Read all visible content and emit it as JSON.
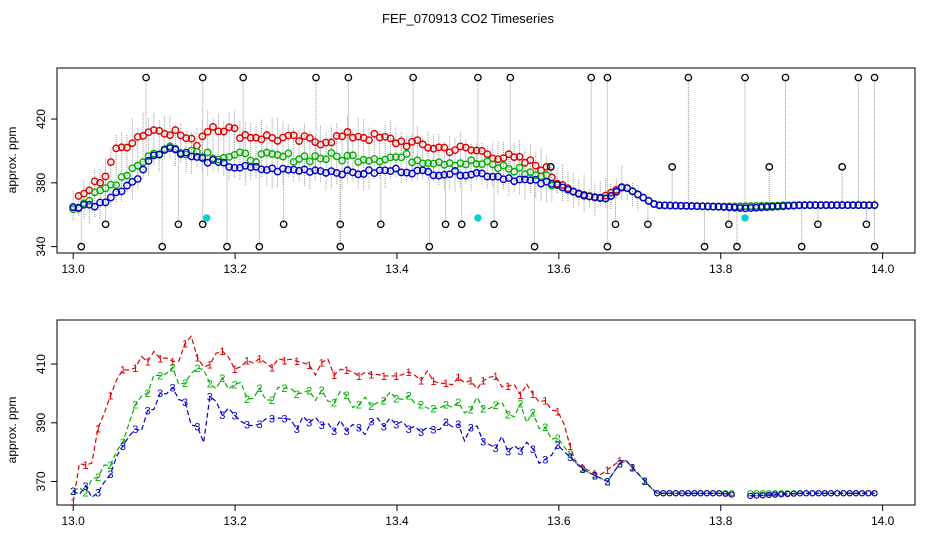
{
  "title": "FEF_070913  CO2 Timeseries",
  "colors": {
    "series1": "#e00000",
    "series2": "#00b000",
    "series3": "#0000d0",
    "outlier": "#000000",
    "flag": "#00d0d0",
    "drop": "#9a9a9a"
  },
  "chart_data": [
    {
      "id": "top",
      "type": "scatter",
      "ylabel": "approx. ppm",
      "xlim": [
        12.98,
        14.04
      ],
      "ylim": [
        336,
        452
      ],
      "xticks": [
        13.0,
        13.2,
        13.4,
        13.6,
        13.8,
        14.0
      ],
      "xtick_labels": [
        "13.0",
        "13.2",
        "13.4",
        "13.6",
        "13.8",
        "14.0"
      ],
      "yticks": [
        340,
        380,
        420
      ],
      "ytick_labels": [
        "340",
        "380",
        "420"
      ],
      "series": [
        {
          "name": "1",
          "color": "red",
          "x": [
            13.0,
            13.02,
            13.04,
            13.05,
            13.07,
            13.09,
            13.11,
            13.13,
            13.15,
            13.17,
            13.19,
            13.21,
            13.25,
            13.3,
            13.35,
            13.4,
            13.45,
            13.5,
            13.55,
            13.58,
            13.6,
            13.62,
            13.65,
            13.68,
            13.72,
            13.8,
            13.9,
            13.99
          ],
          "y": [
            366,
            376,
            385,
            398,
            406,
            412,
            414,
            411,
            404,
            416,
            414,
            410,
            408,
            406,
            410,
            406,
            402,
            400,
            394,
            390,
            380,
            374,
            370,
            378,
            366,
            365,
            366,
            366
          ]
        },
        {
          "name": "2",
          "color": "green",
          "x": [
            13.0,
            13.03,
            13.06,
            13.09,
            13.12,
            13.15,
            13.18,
            13.22,
            13.3,
            13.4,
            13.45,
            13.5,
            13.55,
            13.58,
            13.6,
            13.63,
            13.66,
            13.68,
            13.72,
            13.8,
            13.9,
            13.99
          ],
          "y": [
            365,
            372,
            384,
            396,
            402,
            400,
            397,
            396,
            396,
            396,
            394,
            392,
            388,
            384,
            378,
            372,
            370,
            378,
            366,
            365,
            366,
            366
          ]
        },
        {
          "name": "3",
          "color": "blue",
          "x": [
            13.0,
            13.03,
            13.05,
            13.08,
            13.1,
            13.12,
            13.15,
            13.18,
            13.2,
            13.25,
            13.3,
            13.35,
            13.4,
            13.45,
            13.5,
            13.55,
            13.58,
            13.6,
            13.63,
            13.66,
            13.68,
            13.7,
            13.72,
            13.8,
            13.83,
            13.9,
            13.99
          ],
          "y": [
            365,
            366,
            372,
            384,
            398,
            402,
            396,
            392,
            390,
            388,
            388,
            386,
            388,
            386,
            386,
            382,
            380,
            378,
            372,
            370,
            378,
            372,
            366,
            365,
            364,
            366,
            366
          ]
        }
      ],
      "outliers": {
        "name": "outliers",
        "x": [
          13.01,
          13.04,
          13.09,
          13.11,
          13.13,
          13.16,
          13.16,
          13.19,
          13.21,
          13.23,
          13.26,
          13.3,
          13.33,
          13.33,
          13.34,
          13.38,
          13.42,
          13.44,
          13.46,
          13.48,
          13.5,
          13.52,
          13.54,
          13.57,
          13.59,
          13.64,
          13.66,
          13.66,
          13.67,
          13.71,
          13.74,
          13.76,
          13.78,
          13.81,
          13.82,
          13.83,
          13.86,
          13.88,
          13.9,
          13.92,
          13.95,
          13.97,
          13.98,
          13.99,
          13.99
        ],
        "y": [
          340,
          354,
          446,
          340,
          354,
          354,
          446,
          340,
          446,
          340,
          354,
          446,
          354,
          340,
          446,
          354,
          446,
          340,
          354,
          354,
          446,
          354,
          446,
          340,
          390,
          446,
          446,
          340,
          354,
          354,
          390,
          446,
          340,
          354,
          340,
          446,
          390,
          446,
          340,
          354,
          390,
          446,
          354,
          446,
          340
        ]
      },
      "flags": {
        "name": "flags",
        "x": [
          13.165,
          13.5,
          13.83
        ],
        "y": [
          358,
          358,
          358
        ]
      }
    },
    {
      "id": "bottom",
      "type": "line",
      "ylabel": "approx. ppm",
      "xlim": [
        12.98,
        14.04
      ],
      "ylim": [
        362,
        425
      ],
      "xticks": [
        13.0,
        13.2,
        13.4,
        13.6,
        13.8,
        14.0
      ],
      "xtick_labels": [
        "13.0",
        "13.2",
        "13.4",
        "13.6",
        "13.8",
        "14.0"
      ],
      "yticks": [
        370,
        390,
        410
      ],
      "ytick_labels": [
        "370",
        "390",
        "410"
      ],
      "series": [
        {
          "name": "1",
          "label": "1",
          "color": "red",
          "x": [
            13.0,
            13.01,
            13.02,
            13.03,
            13.04,
            13.05,
            13.06,
            13.07,
            13.09,
            13.11,
            13.13,
            13.15,
            13.16,
            13.18,
            13.2,
            13.25,
            13.3,
            13.35,
            13.4,
            13.45,
            13.5,
            13.55,
            13.58,
            13.6,
            13.62,
            13.65,
            13.68,
            13.7,
            13.72,
            13.8,
            13.83,
            13.9,
            13.99
          ],
          "y": [
            366,
            382,
            372,
            386,
            394,
            400,
            405,
            410,
            412,
            413,
            412,
            418,
            410,
            412,
            410,
            410,
            409,
            408,
            408,
            406,
            404,
            402,
            398,
            396,
            376,
            372,
            378,
            372,
            366,
            366,
            365,
            366,
            366
          ]
        },
        {
          "name": "2",
          "label": "2",
          "color": "green",
          "x": [
            13.0,
            13.03,
            13.06,
            13.08,
            13.1,
            13.12,
            13.15,
            13.18,
            13.22,
            13.3,
            13.35,
            13.4,
            13.45,
            13.5,
            13.55,
            13.58,
            13.6,
            13.63,
            13.66,
            13.68,
            13.7,
            13.72,
            13.8,
            13.9,
            13.99
          ],
          "y": [
            366,
            370,
            382,
            396,
            404,
            406,
            406,
            404,
            400,
            400,
            398,
            398,
            397,
            396,
            394,
            390,
            384,
            374,
            370,
            378,
            372,
            366,
            366,
            366,
            366
          ]
        },
        {
          "name": "3",
          "label": "3",
          "color": "blue",
          "x": [
            13.0,
            13.02,
            13.04,
            13.06,
            13.08,
            13.1,
            13.12,
            13.14,
            13.16,
            13.17,
            13.18,
            13.2,
            13.25,
            13.3,
            13.35,
            13.4,
            13.45,
            13.5,
            13.55,
            13.58,
            13.6,
            13.63,
            13.66,
            13.68,
            13.7,
            13.72,
            13.8,
            13.83,
            13.9,
            13.99
          ],
          "y": [
            366,
            366,
            370,
            380,
            388,
            396,
            400,
            394,
            384,
            402,
            394,
            392,
            390,
            390,
            388,
            390,
            388,
            386,
            382,
            378,
            382,
            374,
            370,
            378,
            372,
            366,
            366,
            365,
            366,
            366
          ]
        }
      ]
    }
  ]
}
